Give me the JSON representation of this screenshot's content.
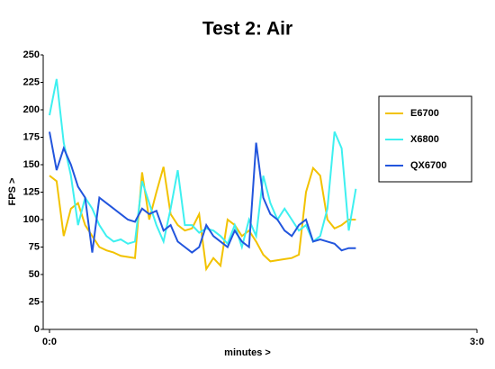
{
  "chart_data": {
    "type": "line",
    "title": "Test 2: Air",
    "x_label": "minutes >",
    "y_label": "FPS >",
    "x": [
      0,
      0.05,
      0.1,
      0.15,
      0.2,
      0.25,
      0.3,
      0.35,
      0.4,
      0.45,
      0.5,
      0.55,
      0.6,
      0.65,
      0.7,
      0.75,
      0.8,
      0.85,
      0.9,
      0.95,
      1,
      1.05,
      1.1,
      1.15,
      1.2,
      1.25,
      1.3,
      1.35,
      1.4,
      1.45,
      1.5,
      1.55,
      1.6,
      1.65,
      1.7,
      1.75,
      1.8,
      1.85,
      1.9,
      1.95,
      2,
      2.05,
      2.1,
      2.15
    ],
    "series": [
      {
        "name": "E6700",
        "color": "#f2c200",
        "values": [
          140,
          135,
          85,
          110,
          115,
          95,
          85,
          75,
          72,
          70,
          67,
          66,
          65,
          143,
          100,
          125,
          148,
          105,
          95,
          90,
          92,
          105,
          55,
          65,
          58,
          100,
          95,
          85,
          90,
          80,
          68,
          62,
          63,
          64,
          65,
          68,
          125,
          147,
          140,
          100,
          92,
          95,
          100,
          100
        ]
      },
      {
        "name": "X6800",
        "color": "#3ef0f0",
        "values": [
          195,
          228,
          170,
          140,
          95,
          120,
          110,
          95,
          85,
          80,
          82,
          78,
          80,
          135,
          115,
          95,
          80,
          110,
          145,
          95,
          95,
          88,
          92,
          90,
          85,
          78,
          95,
          75,
          100,
          85,
          140,
          115,
          100,
          110,
          100,
          90,
          95,
          80,
          85,
          110,
          180,
          165,
          90,
          128
        ]
      },
      {
        "name": "QX6700",
        "color": "#2255dd",
        "values": [
          180,
          145,
          165,
          150,
          130,
          120,
          70,
          120,
          115,
          110,
          105,
          100,
          98,
          110,
          105,
          108,
          90,
          95,
          80,
          75,
          70,
          75,
          95,
          85,
          80,
          75,
          90,
          80,
          75,
          170,
          120,
          105,
          100,
          90,
          85,
          95,
          100,
          80,
          82,
          80,
          78,
          72,
          74,
          74
        ]
      }
    ],
    "xlim": [
      0,
      3
    ],
    "xticks": [
      {
        "value": 0,
        "label": "0:0"
      },
      {
        "value": 3,
        "label": "3:0"
      }
    ],
    "ylim": [
      0,
      250
    ],
    "yticks": [
      0,
      25,
      50,
      75,
      100,
      125,
      150,
      175,
      200,
      225,
      250
    ],
    "grid": false,
    "legend": "right"
  }
}
